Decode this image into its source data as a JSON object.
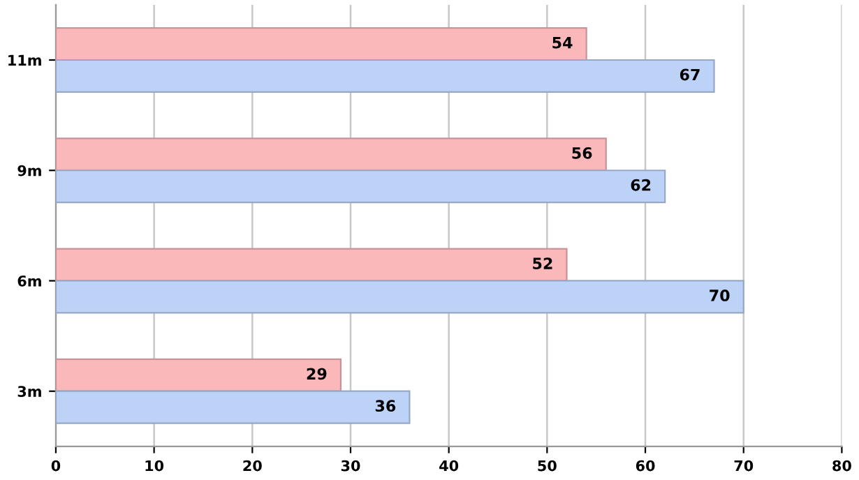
{
  "chart_data": {
    "type": "bar",
    "orientation": "horizontal",
    "categories": [
      "11m",
      "9m",
      "6m",
      "3m"
    ],
    "series": [
      {
        "color": "#fbb8bb",
        "values": [
          54,
          56,
          52,
          29
        ]
      },
      {
        "color": "#bcd2f7",
        "values": [
          67,
          62,
          70,
          36
        ]
      }
    ],
    "xlim": [
      0,
      80
    ],
    "xticks": [
      0,
      10,
      20,
      30,
      40,
      50,
      60,
      70,
      80
    ],
    "grid": "x",
    "data_labels": true,
    "legend": false
  }
}
